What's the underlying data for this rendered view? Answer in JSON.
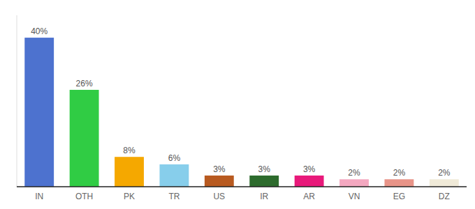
{
  "chart_data": {
    "type": "bar",
    "categories": [
      "IN",
      "OTH",
      "PK",
      "TR",
      "US",
      "IR",
      "AR",
      "VN",
      "EG",
      "DZ"
    ],
    "values": [
      40,
      26,
      8,
      6,
      3,
      3,
      3,
      2,
      2,
      2
    ],
    "value_labels": [
      "40%",
      "26%",
      "8%",
      "6%",
      "3%",
      "3%",
      "3%",
      "2%",
      "2%",
      "2%"
    ],
    "colors": [
      "#4d72cf",
      "#30cc44",
      "#f5a800",
      "#87ceeb",
      "#b85a20",
      "#2d6b2d",
      "#e8197a",
      "#f4a8c0",
      "#e89488",
      "#f0ead8"
    ],
    "ylim": [
      0,
      46
    ],
    "data_labels": true,
    "tick_labels": "x"
  }
}
